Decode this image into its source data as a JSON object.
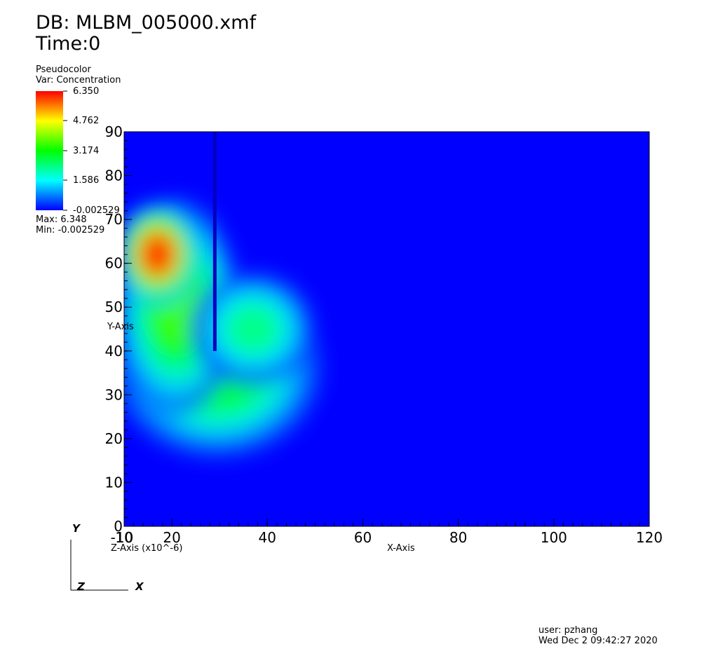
{
  "header": {
    "db_label": "DB: MLBM_005000.xmf",
    "time_label": "Time:0"
  },
  "legend": {
    "plot_type": "Pseudocolor",
    "variable": "Var: Concentration",
    "ticks": [
      "6.350",
      "4.762",
      "3.174",
      "1.586",
      "-0.002529"
    ],
    "max_label": "Max:  6.348",
    "min_label": "Min: -0.002529",
    "colors": [
      "#ff0000",
      "#ffff00",
      "#00ff00",
      "#00ffff",
      "#0000ff"
    ]
  },
  "footer": {
    "user": "user: pzhang",
    "date": "Wed Dec  2 09:42:27 2020"
  },
  "triad": {
    "y": "Y",
    "z": "Z",
    "x": "X"
  },
  "chart_data": {
    "type": "heatmap",
    "title": "",
    "xlabel": "X-Axis",
    "ylabel": "Y-Axis",
    "zlabel": "Z-Axis (x10^-6)",
    "xlim": [
      10,
      120
    ],
    "ylim": [
      0,
      90
    ],
    "x_ticks": [
      10,
      20,
      40,
      60,
      80,
      100,
      120
    ],
    "x_tick_labels": [
      "10",
      "20",
      "40",
      "60",
      "80",
      "100",
      "120"
    ],
    "z_tick_label": "-10",
    "y_ticks": [
      0,
      10,
      20,
      30,
      40,
      50,
      60,
      70,
      80,
      90
    ],
    "y_tick_labels": [
      "0",
      "10",
      "20",
      "30",
      "40",
      "50",
      "60",
      "70",
      "80",
      "90"
    ],
    "value_range": [
      -0.002529,
      6.35
    ],
    "background_value": -0.002529,
    "obstacle": {
      "x": 29,
      "y_bottom": 40,
      "y_top": 90
    },
    "features": [
      {
        "x": 29.5,
        "y": 36,
        "rx": 15,
        "ry": 14,
        "peak": 3.2
      },
      {
        "x": 21,
        "y": 50,
        "rx": 9,
        "ry": 17,
        "peak": 3.6
      },
      {
        "x": 17,
        "y": 62,
        "rx": 6,
        "ry": 8,
        "peak": 6.35
      },
      {
        "x": 37,
        "y": 45,
        "rx": 9,
        "ry": 9,
        "peak": 2.4
      }
    ]
  }
}
